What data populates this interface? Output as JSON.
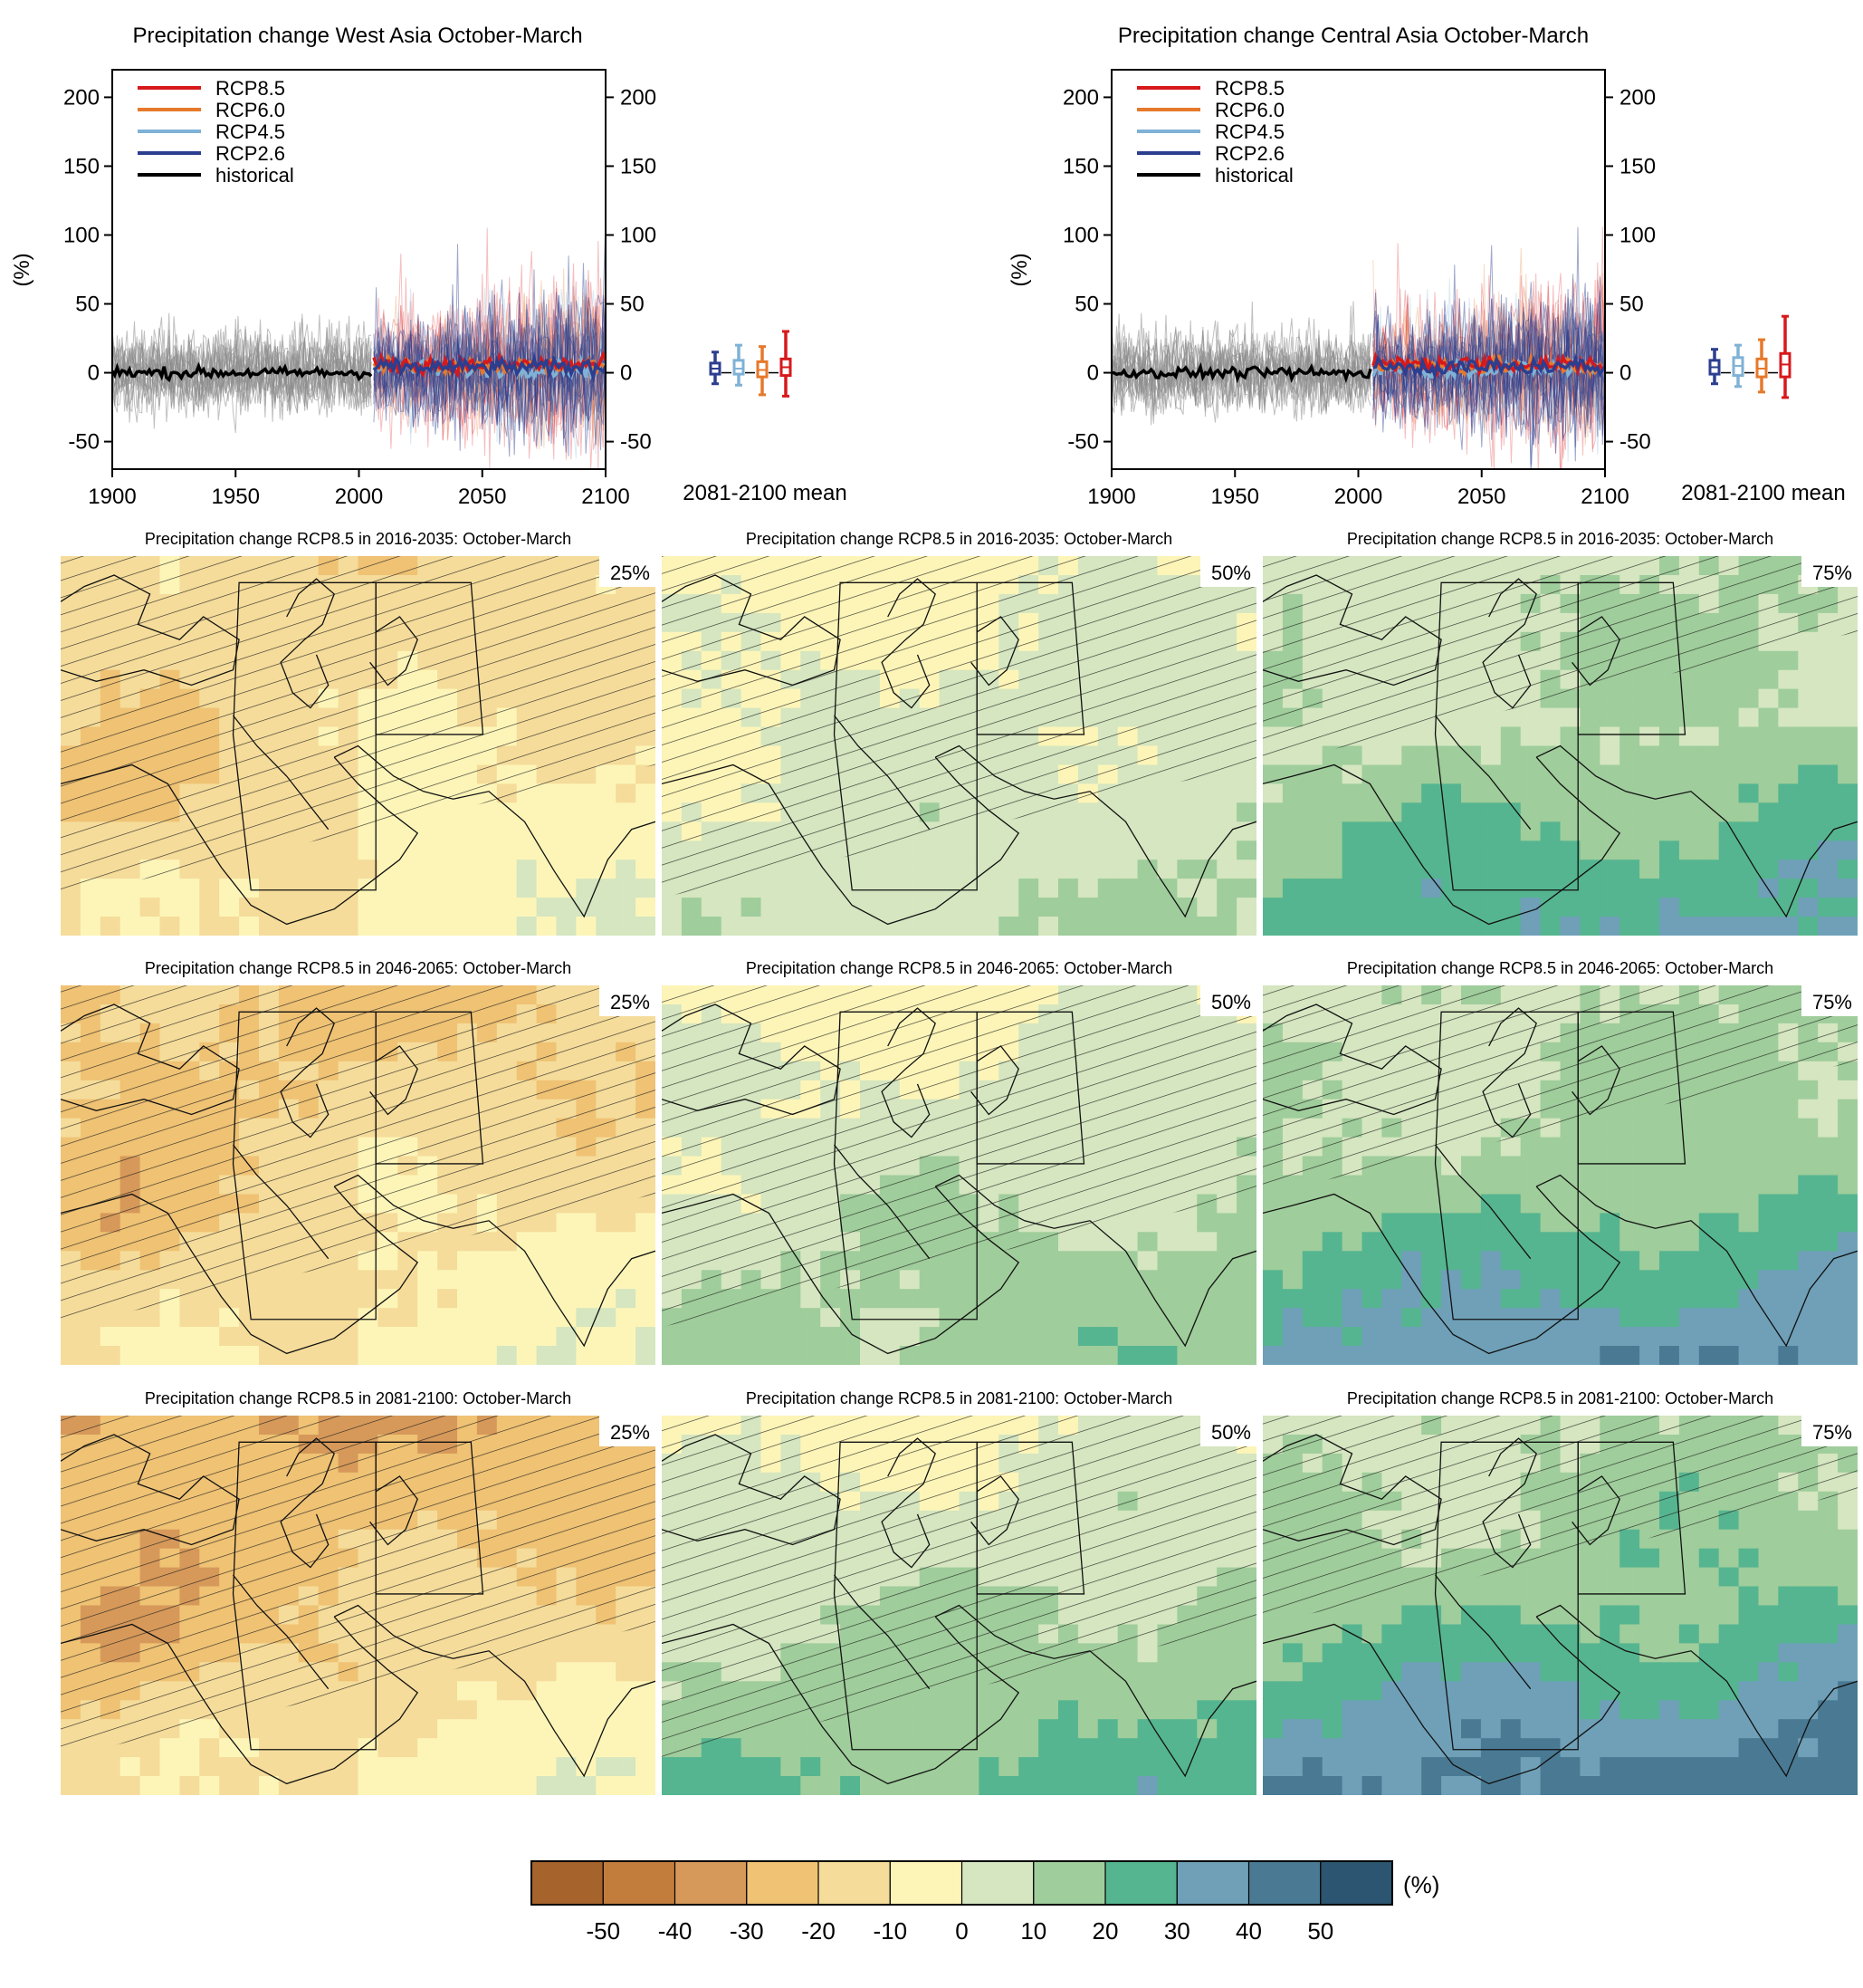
{
  "chart_data": [
    {
      "type": "line",
      "title": "Precipitation change West Asia October-March",
      "ylabel": "(%)",
      "xlim": [
        1900,
        2100
      ],
      "ylim": [
        -70,
        220
      ],
      "x_ticks": [
        "1900",
        "1950",
        "2000",
        "2050",
        "2100"
      ],
      "y_ticks": [
        "200",
        "150",
        "100",
        "50",
        "0",
        "-50"
      ],
      "legend_position": "top-left",
      "series": [
        {
          "name": "RCP8.5",
          "color": "#d7191c"
        },
        {
          "name": "RCP6.0",
          "color": "#e6792b"
        },
        {
          "name": "RCP4.5",
          "color": "#7fb2d6"
        },
        {
          "name": "RCP2.6",
          "color": "#2c3e8f"
        },
        {
          "name": "historical",
          "color": "#000000"
        }
      ],
      "boxplot": {
        "label": "2081-2100 mean",
        "boxes": [
          {
            "series": "RCP2.6",
            "min": -8,
            "q1": -1,
            "median": 3,
            "q3": 7,
            "max": 15,
            "color": "#2c3e8f"
          },
          {
            "series": "RCP4.5",
            "min": -9,
            "q1": -1,
            "median": 3,
            "q3": 9,
            "max": 20,
            "color": "#7fb2d6"
          },
          {
            "series": "RCP6.0",
            "min": -16,
            "q1": -3,
            "median": 2,
            "q3": 8,
            "max": 19,
            "color": "#e6792b"
          },
          {
            "series": "RCP8.5",
            "min": -17,
            "q1": -2,
            "median": 4,
            "q3": 10,
            "max": 30,
            "color": "#d7191c"
          }
        ]
      }
    },
    {
      "type": "line",
      "title": "Precipitation change Central Asia October-March",
      "ylabel": "(%)",
      "xlim": [
        1900,
        2100
      ],
      "ylim": [
        -70,
        220
      ],
      "x_ticks": [
        "1900",
        "1950",
        "2000",
        "2050",
        "2100"
      ],
      "y_ticks": [
        "200",
        "150",
        "100",
        "50",
        "0",
        "-50"
      ],
      "legend_position": "top-left",
      "series": [
        {
          "name": "RCP8.5",
          "color": "#d7191c"
        },
        {
          "name": "RCP6.0",
          "color": "#e6792b"
        },
        {
          "name": "RCP4.5",
          "color": "#7fb2d6"
        },
        {
          "name": "RCP2.6",
          "color": "#2c3e8f"
        },
        {
          "name": "historical",
          "color": "#000000"
        }
      ],
      "boxplot": {
        "label": "2081-2100 mean",
        "boxes": [
          {
            "series": "RCP2.6",
            "min": -8,
            "q1": -1,
            "median": 4,
            "q3": 9,
            "max": 17,
            "color": "#2c3e8f"
          },
          {
            "series": "RCP4.5",
            "min": -10,
            "q1": -2,
            "median": 5,
            "q3": 11,
            "max": 20,
            "color": "#7fb2d6"
          },
          {
            "series": "RCP6.0",
            "min": -14,
            "q1": -3,
            "median": 3,
            "q3": 10,
            "max": 24,
            "color": "#e6792b"
          },
          {
            "series": "RCP8.5",
            "min": -18,
            "q1": -3,
            "median": 6,
            "q3": 14,
            "max": 41,
            "color": "#d7191c"
          }
        ]
      }
    },
    {
      "type": "heatmap",
      "panels": [
        {
          "title": "Precipitation change RCP8.5 in 2016-2035: October-March",
          "label": "25%",
          "level": 0
        },
        {
          "title": "Precipitation change RCP8.5 in 2016-2035: October-March",
          "label": "50%",
          "level": 1
        },
        {
          "title": "Precipitation change RCP8.5 in 2016-2035: October-March",
          "label": "75%",
          "level": 2
        },
        {
          "title": "Precipitation change RCP8.5 in 2046-2065: October-March",
          "label": "25%",
          "level": 0
        },
        {
          "title": "Precipitation change RCP8.5 in 2046-2065: October-March",
          "label": "50%",
          "level": 1
        },
        {
          "title": "Precipitation change RCP8.5 in 2046-2065: October-March",
          "label": "75%",
          "level": 2
        },
        {
          "title": "Precipitation change RCP8.5 in 2081-2100: October-March",
          "label": "25%",
          "level": 0
        },
        {
          "title": "Precipitation change RCP8.5 in 2081-2100: October-March",
          "label": "50%",
          "level": 1
        },
        {
          "title": "Precipitation change RCP8.5 in 2081-2100: October-March",
          "label": "75%",
          "level": 2
        }
      ],
      "colorbar": {
        "unit": "(%)",
        "tick_labels": [
          "-50",
          "-40",
          "-30",
          "-20",
          "-10",
          "0",
          "10",
          "20",
          "30",
          "40",
          "50"
        ],
        "colors": [
          "#a6632c",
          "#c27d3c",
          "#d6995a",
          "#efc274",
          "#f5dc9a",
          "#fdf5b8",
          "#d5e6c0",
          "#9fcd9b",
          "#55b590",
          "#6fa0b8",
          "#4a7a93",
          "#2b5570"
        ]
      }
    }
  ]
}
